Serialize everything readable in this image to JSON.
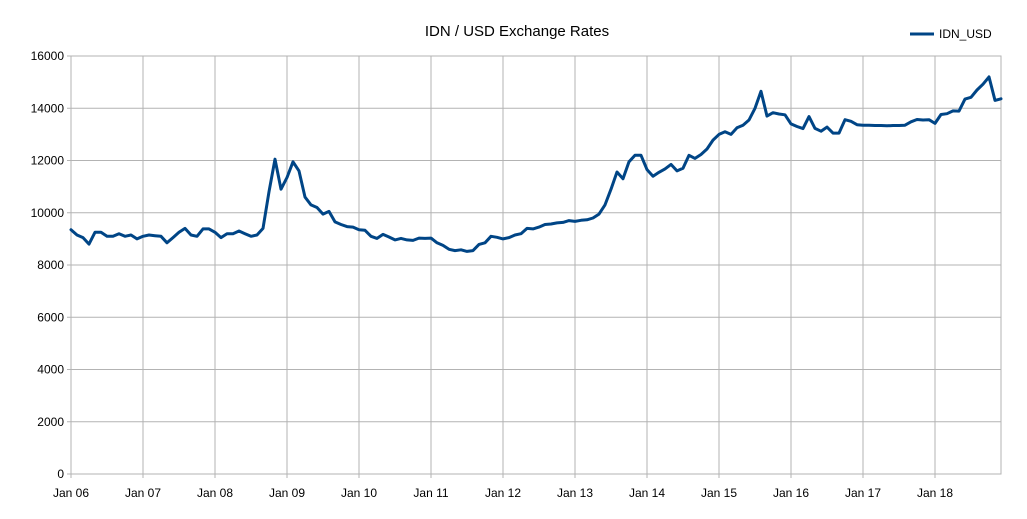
{
  "chart_data": {
    "type": "line",
    "title": "IDN / USD Exchange Rates",
    "xlabel": "",
    "ylabel": "",
    "ylim": [
      0,
      16000
    ],
    "y_ticks": [
      0,
      2000,
      4000,
      6000,
      8000,
      10000,
      12000,
      14000,
      16000
    ],
    "y_tick_labels": [
      "0",
      "2000",
      "4000",
      "6000",
      "8000",
      "10000",
      "12000",
      "14000",
      "16000"
    ],
    "x_ticks": [
      "Jan 06",
      "Jan 07",
      "Jan 08",
      "Jan 09",
      "Jan 10",
      "Jan 11",
      "Jan 12",
      "Jan 13",
      "Jan 14",
      "Jan 15",
      "Jan 16",
      "Jan 17",
      "Jan 18"
    ],
    "x_range_months": [
      0,
      155
    ],
    "grid": true,
    "legend_position": "top-right",
    "line_color": "#004586",
    "series": [
      {
        "name": "IDN_USD",
        "x": [
          0,
          1,
          2,
          3,
          4,
          5,
          6,
          7,
          8,
          9,
          10,
          11,
          12,
          13,
          14,
          15,
          16,
          17,
          18,
          19,
          20,
          21,
          22,
          23,
          24,
          25,
          26,
          27,
          28,
          29,
          30,
          31,
          32,
          33,
          34,
          35,
          36,
          37,
          38,
          39,
          40,
          41,
          42,
          43,
          44,
          45,
          46,
          47,
          48,
          49,
          50,
          51,
          52,
          53,
          54,
          55,
          56,
          57,
          58,
          59,
          60,
          61,
          62,
          63,
          64,
          65,
          66,
          67,
          68,
          69,
          70,
          71,
          72,
          73,
          74,
          75,
          76,
          77,
          78,
          79,
          80,
          81,
          82,
          83,
          84,
          85,
          86,
          87,
          88,
          89,
          90,
          91,
          92,
          93,
          94,
          95,
          96,
          97,
          98,
          99,
          100,
          101,
          102,
          103,
          104,
          105,
          106,
          107,
          108,
          109,
          110,
          111,
          112,
          113,
          114,
          115,
          116,
          117,
          118,
          119,
          120,
          121,
          122,
          123,
          124,
          125,
          126,
          127,
          128,
          129,
          130,
          131,
          132,
          133,
          134,
          135,
          136,
          137,
          138,
          139,
          140,
          141,
          142,
          143,
          144,
          145,
          146,
          147,
          148,
          149,
          150,
          151,
          152,
          153,
          154,
          155
        ],
        "values": [
          9350,
          9150,
          9050,
          8800,
          9250,
          9250,
          9100,
          9100,
          9200,
          9100,
          9150,
          9000,
          9100,
          9150,
          9120,
          9100,
          8850,
          9050,
          9250,
          9400,
          9150,
          9100,
          9380,
          9380,
          9250,
          9050,
          9200,
          9200,
          9300,
          9200,
          9100,
          9150,
          9400,
          10800,
          12050,
          10900,
          11350,
          11950,
          11600,
          10600,
          10300,
          10200,
          9950,
          10050,
          9650,
          9550,
          9470,
          9450,
          9350,
          9330,
          9100,
          9020,
          9170,
          9070,
          8960,
          9020,
          8960,
          8940,
          9030,
          9020,
          9030,
          8850,
          8750,
          8600,
          8550,
          8580,
          8520,
          8550,
          8790,
          8850,
          9100,
          9060,
          9000,
          9050,
          9150,
          9200,
          9400,
          9380,
          9450,
          9550,
          9570,
          9610,
          9630,
          9700,
          9670,
          9710,
          9730,
          9800,
          9950,
          10300,
          10900,
          11560,
          11300,
          11950,
          12200,
          12200,
          11650,
          11400,
          11550,
          11680,
          11850,
          11600,
          11700,
          12200,
          12080,
          12230,
          12440,
          12780,
          13000,
          13100,
          13000,
          13250,
          13350,
          13550,
          14000,
          14650,
          13700,
          13830,
          13780,
          13750,
          13400,
          13300,
          13220,
          13680,
          13230,
          13120,
          13280,
          13050,
          13050,
          13560,
          13500,
          13370,
          13350,
          13350,
          13340,
          13340,
          13330,
          13340,
          13340,
          13350,
          13480,
          13570,
          13550,
          13560,
          13420,
          13760,
          13790,
          13900,
          13890,
          14350,
          14420,
          14700,
          14920,
          15200,
          14300,
          14360
        ]
      }
    ]
  }
}
